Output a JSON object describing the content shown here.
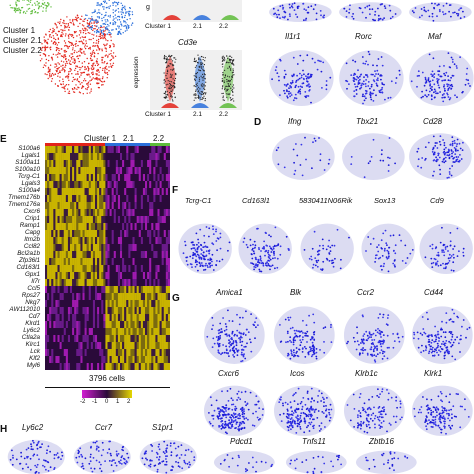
{
  "panel_a": {
    "legend": [
      {
        "label": "Cluster 1",
        "color": "#e2231a"
      },
      {
        "label": "Cluster 2.1",
        "color": "#2a6fdb"
      },
      {
        "label": "Cluster 2.2",
        "color": "#5dbb3a"
      }
    ]
  },
  "panel_b": {
    "top_axis_fragment": "g",
    "top_categories": [
      "Cluster 1",
      "2.1",
      "2.2"
    ],
    "bottom_gene": "Cd3e",
    "bottom_ylabel": "expression",
    "bottom_categories": [
      "Cluster 1",
      "2.1",
      "2.2"
    ],
    "violin_colors": [
      "#e2231a",
      "#2a6fdb",
      "#5dbb3a"
    ]
  },
  "panel_c": {
    "genes": [
      "Il1r1",
      "Rorc",
      "Maf"
    ]
  },
  "panel_d": {
    "letter": "D",
    "genes": [
      "Ifng",
      "Tbx21",
      "Cd28"
    ]
  },
  "panel_e": {
    "letter": "E",
    "header": [
      "Cluster 1",
      "2.1",
      "2.2"
    ],
    "header_colors": [
      "#e2231a",
      "#2a6fdb",
      "#5dbb3a"
    ],
    "genes": [
      "S100a6",
      "Lgals1",
      "S100a11",
      "S100a10",
      "Tcrg-C1",
      "Lgals3",
      "S100a4",
      "Tmem176b",
      "Tmem176a",
      "Cxcr6",
      "Crip1",
      "Ramp1",
      "Capg",
      "Itm2b",
      "Ccl82",
      "Bcl2a1b",
      "Zfp36l1",
      "Cd163l1",
      "Gpx1",
      "Il7r",
      "Ccl5",
      "Rps27",
      "Nkg7",
      "AW112010",
      "Cd7",
      "Klrd1",
      "Ly6c2",
      "Ctla2a",
      "Klrc1",
      "Lck",
      "Klf2",
      "Myl6"
    ],
    "cells_label": "3796 cells",
    "colorbar_ticks": [
      "-2",
      "-1",
      "0",
      "1",
      "2"
    ]
  },
  "panel_f": {
    "letter": "F",
    "genes": [
      "Tcrg-C1",
      "Cd163l1",
      "5830411N06Rik",
      "Sox13",
      "Cd9"
    ]
  },
  "panel_g": {
    "letter": "G",
    "row1": [
      "Amica1",
      "Blk",
      "Ccr2",
      "Cd44"
    ],
    "row2": [
      "Cxcr6",
      "Icos",
      "Klrb1c",
      "Klrk1"
    ],
    "row3": [
      "Pdcd1",
      "Tnfs11",
      "Zbtb16"
    ]
  },
  "panel_h": {
    "letter": "H",
    "genes": [
      "Ly6c2",
      "Ccr7",
      "S1pr1"
    ]
  }
}
